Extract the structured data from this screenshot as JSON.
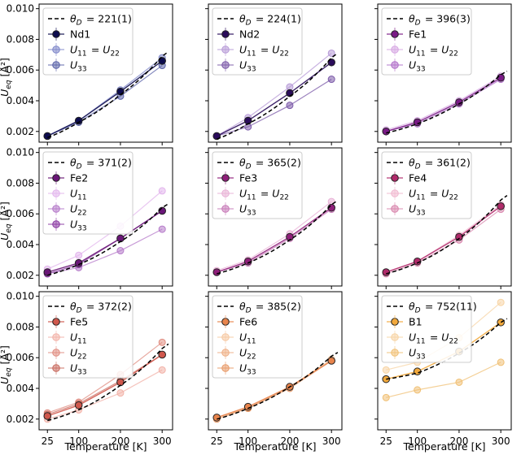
{
  "figure": {
    "xlabel": "Temperature [K]",
    "ylabel": "U_eq [Å²]",
    "xticks": [
      "25",
      "100",
      "200",
      "300"
    ],
    "yticks": [
      "0.002",
      "0.004",
      "0.006",
      "0.008",
      "0.010"
    ]
  },
  "chart_data": [
    {
      "type": "line",
      "x": [
        25,
        100,
        200,
        300
      ],
      "ylim": [
        0.0013,
        0.0103
      ],
      "legend_position": "top-left",
      "debye": {
        "label": "θ_D = 221(1)",
        "values": [
          0.0016,
          0.0026,
          0.0044,
          0.0069
        ]
      },
      "series": [
        {
          "name": "Nd1",
          "role": "main",
          "color": "#0d0c4e",
          "values": [
            0.0017,
            0.0027,
            0.0046,
            0.0066
          ]
        },
        {
          "name": "U11 = U22",
          "role": "sub",
          "color": "#7e86c9",
          "values": [
            0.0017,
            0.0027,
            0.0047,
            0.0068
          ]
        },
        {
          "name": "U33",
          "role": "sub",
          "color": "#5a62a8",
          "values": [
            0.0017,
            0.0026,
            0.0043,
            0.0063
          ]
        }
      ]
    },
    {
      "type": "line",
      "x": [
        25,
        100,
        200,
        300
      ],
      "ylim": [
        0.0013,
        0.0103
      ],
      "legend_position": "top-left",
      "debye": {
        "label": "θ_D = 224(1)",
        "values": [
          0.0015,
          0.0025,
          0.0043,
          0.0068
        ]
      },
      "series": [
        {
          "name": "Nd2",
          "role": "main",
          "color": "#2a0c5a",
          "values": [
            0.0017,
            0.0027,
            0.0045,
            0.0065
          ]
        },
        {
          "name": "U11 = U22",
          "role": "sub",
          "color": "#b79ad7",
          "values": [
            0.0017,
            0.0029,
            0.0049,
            0.0071
          ]
        },
        {
          "name": "U33",
          "role": "sub",
          "color": "#7b5aa8",
          "values": [
            0.0017,
            0.0023,
            0.0037,
            0.0054
          ]
        }
      ]
    },
    {
      "type": "line",
      "x": [
        25,
        100,
        200,
        300
      ],
      "ylim": [
        0.0013,
        0.0103
      ],
      "legend_position": "top-left",
      "debye": {
        "label": "θ_D = 396(3)",
        "values": [
          0.0019,
          0.0025,
          0.0038,
          0.0057
        ]
      },
      "series": [
        {
          "name": "Fe1",
          "role": "main",
          "color": "#7a1a86",
          "values": [
            0.002,
            0.0026,
            0.0039,
            0.0055
          ]
        },
        {
          "name": "U11 = U22",
          "role": "sub",
          "color": "#d6a6e2",
          "values": [
            0.0021,
            0.0027,
            0.004,
            0.0056
          ]
        },
        {
          "name": "U33",
          "role": "sub",
          "color": "#b070c8",
          "values": [
            0.002,
            0.0025,
            0.0038,
            0.0054
          ]
        }
      ]
    },
    {
      "type": "line",
      "x": [
        25,
        100,
        200,
        300
      ],
      "ylim": [
        0.0013,
        0.0103
      ],
      "legend_position": "top-left",
      "debye": {
        "label": "θ_D = 371(2)",
        "values": [
          0.002,
          0.0027,
          0.0042,
          0.0064
        ]
      },
      "series": [
        {
          "name": "Fe2",
          "role": "main",
          "color": "#6a1678",
          "values": [
            0.0022,
            0.0028,
            0.0044,
            0.0062
          ]
        },
        {
          "name": "U11",
          "role": "sub",
          "color": "#e2b4ec",
          "values": [
            0.0024,
            0.0033,
            0.0052,
            0.0075
          ]
        },
        {
          "name": "U22",
          "role": "sub",
          "color": "#b57ac9",
          "values": [
            0.0021,
            0.0025,
            0.0036,
            0.005
          ]
        },
        {
          "name": "U33",
          "role": "sub",
          "color": "#8a3aa2",
          "values": [
            0.0021,
            0.0027,
            0.0044,
            0.0062
          ]
        }
      ]
    },
    {
      "type": "line",
      "x": [
        25,
        100,
        200,
        300
      ],
      "ylim": [
        0.0013,
        0.0103
      ],
      "legend_position": "top-left",
      "debye": {
        "label": "θ_D = 365(2)",
        "values": [
          0.0021,
          0.0028,
          0.0043,
          0.0066
        ]
      },
      "series": [
        {
          "name": "Fe3",
          "role": "main",
          "color": "#8f1f7a",
          "values": [
            0.0022,
            0.0029,
            0.0045,
            0.0064
          ]
        },
        {
          "name": "U11 = U22",
          "role": "sub",
          "color": "#e8b0d6",
          "values": [
            0.0023,
            0.003,
            0.0047,
            0.0068
          ]
        },
        {
          "name": "U33",
          "role": "sub",
          "color": "#c77ab8",
          "values": [
            0.0022,
            0.0028,
            0.0044,
            0.0063
          ]
        }
      ]
    },
    {
      "type": "line",
      "x": [
        25,
        100,
        200,
        300
      ],
      "ylim": [
        0.0013,
        0.0103
      ],
      "legend_position": "top-left",
      "debye": {
        "label": "θ_D = 361(2)",
        "values": [
          0.0021,
          0.0028,
          0.0044,
          0.0069
        ]
      },
      "series": [
        {
          "name": "Fe4",
          "role": "main",
          "color": "#b02a6a",
          "values": [
            0.0022,
            0.0029,
            0.0045,
            0.0065
          ]
        },
        {
          "name": "U11 = U22",
          "role": "sub",
          "color": "#f0b8cf",
          "values": [
            0.0022,
            0.0029,
            0.0046,
            0.0066
          ]
        },
        {
          "name": "U33",
          "role": "sub",
          "color": "#d886ad",
          "values": [
            0.0021,
            0.0028,
            0.0043,
            0.0063
          ]
        }
      ]
    },
    {
      "type": "line",
      "x": [
        25,
        100,
        200,
        300
      ],
      "ylim": [
        0.0013,
        0.0103
      ],
      "legend_position": "top-left",
      "debye": {
        "label": "θ_D = 372(2)",
        "values": [
          0.0019,
          0.0026,
          0.0042,
          0.0066
        ]
      },
      "series": [
        {
          "name": "Fe5",
          "role": "main",
          "color": "#d0584d",
          "values": [
            0.0022,
            0.0029,
            0.0044,
            0.0062
          ]
        },
        {
          "name": "U11",
          "role": "sub",
          "color": "#f2b2a8",
          "values": [
            0.002,
            0.0026,
            0.0037,
            0.0052
          ]
        },
        {
          "name": "U22",
          "role": "sub",
          "color": "#e08c80",
          "values": [
            0.0024,
            0.0031,
            0.0049,
            0.007
          ]
        },
        {
          "name": "U33",
          "role": "sub",
          "color": "#c86a5e",
          "values": [
            0.0023,
            0.003,
            0.0045,
            0.0062
          ]
        }
      ]
    },
    {
      "type": "line",
      "x": [
        25,
        100,
        200,
        300
      ],
      "ylim": [
        0.0013,
        0.0103
      ],
      "legend_position": "top-left",
      "debye": {
        "label": "θ_D = 385(2)",
        "values": [
          0.002,
          0.0027,
          0.0041,
          0.0061
        ]
      },
      "series": [
        {
          "name": "Fe6",
          "role": "main",
          "color": "#e8844c",
          "values": [
            0.0021,
            0.0028,
            0.0041,
            0.0058
          ]
        },
        {
          "name": "U11",
          "role": "sub",
          "color": "#f6c8a2",
          "values": [
            0.0021,
            0.0027,
            0.0041,
            0.0059
          ]
        },
        {
          "name": "U22",
          "role": "sub",
          "color": "#eeae84",
          "values": [
            0.0021,
            0.0027,
            0.0041,
            0.0058
          ]
        },
        {
          "name": "U33",
          "role": "sub",
          "color": "#e89a68",
          "values": [
            0.002,
            0.0027,
            0.004,
            0.0058
          ]
        }
      ]
    },
    {
      "type": "line",
      "x": [
        25,
        100,
        200,
        300
      ],
      "ylim": [
        0.0013,
        0.0103
      ],
      "legend_position": "top-left",
      "debye": {
        "label": "θ_D = 752(11)",
        "values": [
          0.0046,
          0.005,
          0.0063,
          0.0083
        ]
      },
      "series": [
        {
          "name": "B1",
          "role": "main",
          "color": "#f2a93c",
          "values": [
            0.0046,
            0.0051,
            0.0064,
            0.0083
          ]
        },
        {
          "name": "U11 = U22",
          "role": "sub",
          "color": "#f7d4a4",
          "values": [
            0.0052,
            0.0057,
            0.0073,
            0.0096
          ]
        },
        {
          "name": "U33",
          "role": "sub",
          "color": "#f0c074",
          "values": [
            0.0034,
            0.0039,
            0.0044,
            0.0057
          ]
        }
      ]
    }
  ]
}
